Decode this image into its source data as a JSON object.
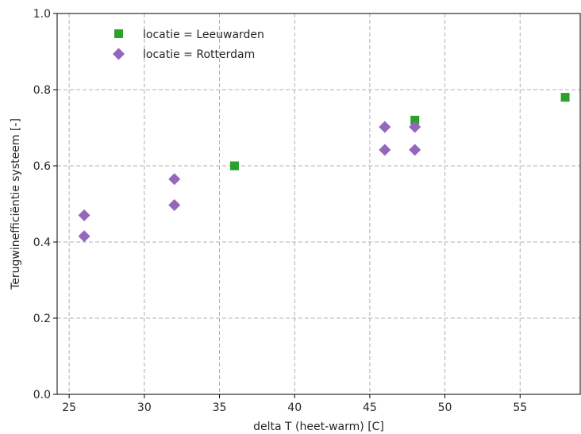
{
  "chart_data": {
    "type": "scatter",
    "xlabel": "delta T (heet-warm) [C]",
    "ylabel": "Terugwinefficiëntie systeem [-]",
    "xlim": [
      24.2,
      59.0
    ],
    "ylim": [
      0.0,
      1.0
    ],
    "xticks": [
      25,
      30,
      35,
      40,
      45,
      50,
      55
    ],
    "xtick_labels": [
      "25",
      "30",
      "35",
      "40",
      "45",
      "50",
      "55"
    ],
    "yticks": [
      0.0,
      0.2,
      0.4,
      0.6,
      0.8,
      1.0
    ],
    "ytick_labels": [
      "0.0",
      "0.2",
      "0.4",
      "0.6",
      "0.8",
      "1.0"
    ],
    "grid": true,
    "legend_position": "top-left",
    "series": [
      {
        "name": "locatie = Leeuwarden",
        "marker": "square",
        "color": "#2ca02c",
        "x": [
          36,
          48,
          58
        ],
        "y": [
          0.6,
          0.72,
          0.78
        ]
      },
      {
        "name": "locatie = Rotterdam",
        "marker": "diamond",
        "color": "#9467bd",
        "x": [
          26,
          26,
          32,
          32,
          46,
          46,
          48,
          48
        ],
        "y": [
          0.47,
          0.415,
          0.565,
          0.497,
          0.702,
          0.642,
          0.702,
          0.642
        ]
      }
    ]
  }
}
